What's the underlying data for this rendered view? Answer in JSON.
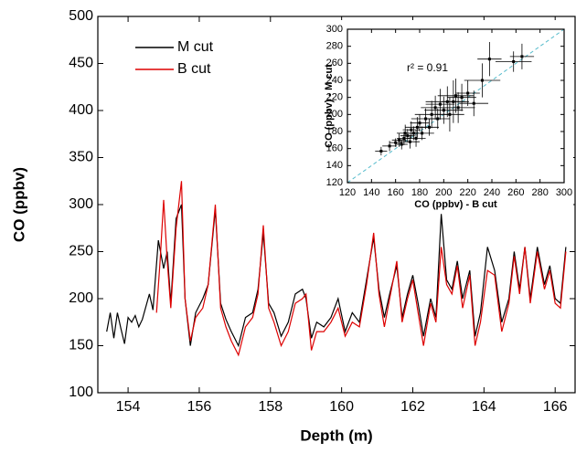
{
  "chart_data": [
    {
      "type": "line",
      "xlabel": "Depth (m)",
      "ylabel": "CO (ppbv)",
      "xlim": [
        153.15,
        166.56
      ],
      "ylim": [
        100,
        500
      ],
      "xticks": [
        154,
        156,
        158,
        160,
        162,
        164,
        166
      ],
      "yticks": [
        100,
        150,
        200,
        250,
        300,
        350,
        400,
        450,
        500
      ],
      "legend": "upper-left",
      "series": [
        {
          "name": "M cut",
          "color": "#000000",
          "x": [
            153.4,
            153.5,
            153.6,
            153.7,
            153.8,
            153.9,
            154.0,
            154.1,
            154.2,
            154.3,
            154.4,
            154.6,
            154.7,
            154.85,
            155.0,
            155.1,
            155.2,
            155.35,
            155.5,
            155.6,
            155.75,
            155.9,
            156.1,
            156.25,
            156.45,
            156.6,
            156.75,
            156.9,
            157.1,
            157.3,
            157.5,
            157.65,
            157.8,
            157.95,
            158.1,
            158.3,
            158.5,
            158.7,
            158.9,
            159.0,
            159.15,
            159.3,
            159.5,
            159.7,
            159.9,
            160.1,
            160.3,
            160.5,
            160.7,
            160.9,
            161.05,
            161.2,
            161.35,
            161.55,
            161.7,
            161.85,
            162.0,
            162.15,
            162.3,
            162.5,
            162.65,
            162.8,
            162.95,
            163.1,
            163.25,
            163.4,
            163.6,
            163.75,
            163.9,
            164.1,
            164.3,
            164.5,
            164.7,
            164.85,
            165.0,
            165.15,
            165.3,
            165.5,
            165.7,
            165.85,
            166.0,
            166.15,
            166.3
          ],
          "values": [
            165,
            185,
            158,
            185,
            168,
            152,
            180,
            175,
            182,
            170,
            178,
            205,
            188,
            262,
            232,
            250,
            195,
            285,
            300,
            200,
            150,
            185,
            200,
            215,
            295,
            195,
            178,
            165,
            150,
            180,
            185,
            210,
            270,
            195,
            185,
            160,
            175,
            205,
            210,
            200,
            158,
            175,
            170,
            180,
            200,
            165,
            185,
            175,
            220,
            265,
            210,
            180,
            205,
            235,
            180,
            205,
            225,
            195,
            160,
            200,
            180,
            290,
            220,
            210,
            240,
            200,
            230,
            160,
            185,
            255,
            230,
            175,
            200,
            250,
            210,
            255,
            200,
            255,
            215,
            235,
            200,
            195,
            255
          ]
        },
        {
          "name": "B cut",
          "color": "#dd0000",
          "x": [
            154.8,
            154.9,
            155.0,
            155.1,
            155.2,
            155.35,
            155.5,
            155.6,
            155.75,
            155.9,
            156.1,
            156.25,
            156.45,
            156.6,
            156.75,
            156.9,
            157.1,
            157.3,
            157.5,
            157.65,
            157.8,
            157.95,
            158.1,
            158.3,
            158.5,
            158.7,
            158.9,
            159.0,
            159.15,
            159.3,
            159.5,
            159.7,
            159.9,
            160.1,
            160.3,
            160.5,
            160.7,
            160.9,
            161.05,
            161.2,
            161.35,
            161.55,
            161.7,
            161.85,
            162.0,
            162.15,
            162.3,
            162.5,
            162.65,
            162.8,
            162.95,
            163.1,
            163.25,
            163.4,
            163.6,
            163.75,
            163.9,
            164.1,
            164.3,
            164.5,
            164.7,
            164.85,
            165.0,
            165.15,
            165.3,
            165.5,
            165.7,
            165.85,
            166.0,
            166.15,
            166.3
          ],
          "values": [
            185,
            240,
            305,
            240,
            190,
            275,
            325,
            200,
            155,
            180,
            190,
            215,
            300,
            190,
            170,
            155,
            140,
            170,
            180,
            205,
            278,
            190,
            175,
            150,
            165,
            195,
            200,
            205,
            145,
            165,
            165,
            175,
            190,
            160,
            175,
            170,
            215,
            270,
            205,
            170,
            200,
            240,
            175,
            200,
            220,
            185,
            150,
            195,
            175,
            255,
            215,
            205,
            235,
            190,
            225,
            150,
            175,
            230,
            225,
            165,
            195,
            245,
            205,
            255,
            195,
            250,
            210,
            230,
            195,
            190,
            250
          ]
        }
      ]
    },
    {
      "type": "scatter",
      "xlabel": "CO (ppbv) - B cut",
      "ylabel": "CO (ppbv) - M cut",
      "annotation": "r² = 0.91",
      "xlim": [
        120,
        300
      ],
      "ylim": [
        120,
        300
      ],
      "xticks": [
        120,
        140,
        160,
        180,
        200,
        220,
        240,
        260,
        280,
        300
      ],
      "yticks": [
        120,
        140,
        160,
        180,
        200,
        220,
        240,
        260,
        280,
        300
      ],
      "color": "#000000",
      "x": [
        148,
        155,
        160,
        163,
        165,
        167,
        168,
        170,
        172,
        173,
        175,
        177,
        178,
        180,
        182,
        185,
        188,
        190,
        193,
        195,
        197,
        200,
        203,
        205,
        208,
        210,
        212,
        215,
        220,
        225,
        232,
        238,
        258,
        265
      ],
      "values": [
        157,
        163,
        167,
        170,
        165,
        172,
        178,
        175,
        168,
        182,
        178,
        172,
        185,
        190,
        178,
        195,
        185,
        200,
        208,
        195,
        212,
        205,
        215,
        200,
        215,
        222,
        208,
        220,
        225,
        213,
        240,
        265,
        262,
        268
      ],
      "xerr": [
        5,
        6,
        5,
        6,
        5,
        6,
        7,
        6,
        8,
        7,
        6,
        8,
        10,
        8,
        10,
        12,
        8,
        14,
        12,
        10,
        12,
        16,
        18,
        12,
        10,
        15,
        14,
        12,
        10,
        12,
        15,
        10,
        15,
        10
      ],
      "yerr": [
        5,
        6,
        5,
        8,
        6,
        8,
        10,
        8,
        8,
        10,
        8,
        10,
        12,
        10,
        8,
        12,
        10,
        16,
        14,
        12,
        18,
        16,
        18,
        20,
        25,
        20,
        18,
        16,
        15,
        15,
        20,
        20,
        12,
        15
      ]
    }
  ]
}
